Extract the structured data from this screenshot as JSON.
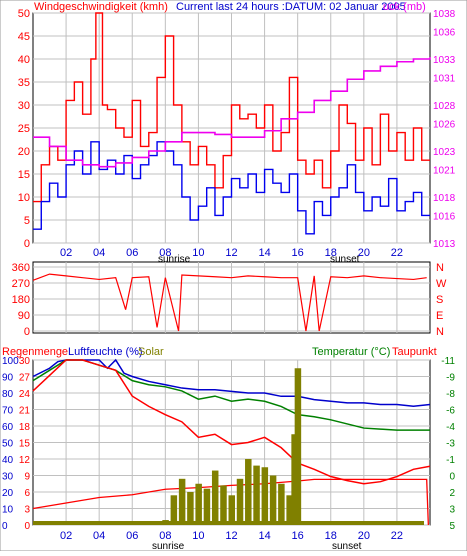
{
  "header": {
    "wind_title": "Windgeschwindigkeit (kmh)",
    "subtitle": "Current last 24 hours :DATUM: 02 Januar 2005",
    "pressure_title": "uck (mb)"
  },
  "bottom_header": {
    "rain": "Regenmenge",
    "humidity": "Luftfeuchte (%)",
    "solar": "Solar",
    "temperature": "Temperatur (°C)",
    "dewpoint": "Taupunkt"
  },
  "hours": [
    "02",
    "04",
    "06",
    "08",
    "10",
    "12",
    "14",
    "16",
    "18",
    "20",
    "22"
  ],
  "sunrise_label": "sunrise",
  "sunset_label": "sunset",
  "colors": {
    "wind_gust": "#ff0000",
    "wind_avg": "#0000ee",
    "pressure": "#ee00ee",
    "direction": "#ff0000",
    "humidity": "#0000cc",
    "temperature": "#008000",
    "dewpoint": "#ff0000",
    "rain": "#ff0000",
    "solar": "#808000",
    "axis_blue": "#0000cc",
    "axis_green": "#008000",
    "axis_red": "#ff0000"
  },
  "chart_data": [
    {
      "type": "line",
      "x_range_hours": [
        0,
        24
      ],
      "ylim": [
        0,
        50
      ],
      "yticks": [
        0,
        5,
        10,
        15,
        20,
        25,
        30,
        35,
        40,
        45,
        50
      ],
      "y2lim": [
        1013,
        1038
      ],
      "y2ticks": [
        1013,
        1016,
        1018,
        1021,
        1023,
        1026,
        1028,
        1031,
        1033,
        1036,
        1038
      ],
      "series": [
        {
          "key": "wind_gust",
          "x": [
            0,
            0.5,
            1,
            1.5,
            2,
            2.5,
            3,
            3.5,
            3.8,
            4.2,
            4.5,
            5,
            5.5,
            6,
            6.5,
            7,
            7.5,
            8,
            8.5,
            9,
            9.5,
            10,
            10.5,
            11,
            11.5,
            12,
            12.5,
            13,
            13.5,
            14,
            14.5,
            15,
            15.5,
            16,
            16.5,
            17,
            17.5,
            18,
            18.5,
            19,
            19.5,
            20,
            20.5,
            21,
            21.5,
            22,
            22.5,
            23,
            23.5
          ],
          "y": [
            9,
            17,
            21,
            18,
            31,
            35,
            28,
            40,
            50,
            30,
            29,
            25,
            23,
            31,
            21,
            24,
            36,
            45,
            30,
            22,
            17,
            21,
            17,
            12,
            19,
            30,
            27,
            28,
            25,
            30,
            20,
            24,
            36,
            18,
            15,
            18,
            12,
            20,
            30,
            26,
            18,
            25,
            17,
            28,
            20,
            24,
            18,
            25,
            18
          ]
        },
        {
          "key": "wind_avg",
          "x": [
            0,
            0.5,
            1,
            1.5,
            2,
            2.5,
            3,
            3.5,
            4,
            4.5,
            5,
            5.5,
            6,
            6.5,
            7,
            7.5,
            8,
            8.5,
            9,
            9.5,
            10,
            10.5,
            11,
            11.5,
            12,
            12.5,
            13,
            13.5,
            14,
            14.5,
            15,
            15.5,
            16,
            16.5,
            17,
            17.5,
            18,
            18.5,
            19,
            19.5,
            20,
            20.5,
            21,
            21.5,
            22,
            22.5,
            23,
            23.5
          ],
          "y": [
            3,
            9,
            13,
            10,
            17,
            20,
            15,
            22,
            16,
            18,
            15,
            19,
            14,
            17,
            19,
            22,
            20,
            17,
            10,
            5,
            8,
            12,
            6,
            10,
            14,
            12,
            15,
            11,
            16,
            13,
            11,
            15,
            7,
            2,
            9,
            6,
            10,
            12,
            17,
            11,
            7,
            10,
            8,
            14,
            7,
            9,
            11,
            6
          ]
        },
        {
          "key": "pressure",
          "x": [
            0,
            1,
            2,
            3,
            4,
            5,
            6,
            7,
            8,
            9,
            10,
            11,
            12,
            13,
            14,
            15,
            16,
            17,
            18,
            19,
            20,
            21,
            22,
            23,
            24
          ],
          "y": [
            1024.5,
            1023.5,
            1022,
            1021.5,
            1021.3,
            1021.7,
            1022.3,
            1023,
            1024,
            1025,
            1025,
            1024.8,
            1024.5,
            1024.5,
            1025.2,
            1026.5,
            1027.2,
            1028.5,
            1029.5,
            1030.8,
            1031.7,
            1032.2,
            1032.7,
            1033.0,
            1033.2
          ]
        }
      ]
    },
    {
      "type": "scatter",
      "ylim": [
        0,
        360
      ],
      "yticks": [
        0,
        90,
        180,
        270,
        360
      ],
      "direction_labels": [
        "N",
        "E",
        "S",
        "W",
        "N"
      ],
      "series": [
        {
          "key": "direction",
          "x": [
            0,
            1,
            2,
            3,
            4,
            5,
            5.6,
            6,
            7,
            7.5,
            8,
            8.8,
            9,
            10,
            11,
            12,
            13,
            14,
            15,
            16,
            16.5,
            17,
            17.3,
            18,
            19,
            20,
            21,
            22,
            23,
            23.8
          ],
          "y": [
            285,
            320,
            310,
            300,
            290,
            300,
            120,
            300,
            305,
            20,
            300,
            0,
            315,
            310,
            305,
            300,
            310,
            305,
            300,
            300,
            0,
            310,
            0,
            305,
            300,
            310,
            300,
            295,
            290,
            300
          ]
        }
      ]
    },
    {
      "type": "line",
      "ylim_humidity": [
        0,
        100
      ],
      "yticks_humidity": [
        0,
        10,
        20,
        30,
        40,
        50,
        60,
        70,
        80,
        90,
        100
      ],
      "yticks_rain": [
        0,
        3,
        6,
        9,
        12,
        15,
        18,
        21,
        24,
        27,
        30
      ],
      "ylim_temp": [
        -11,
        5
      ],
      "yticks_temp": [
        5,
        3,
        2,
        0,
        -1,
        -3,
        -4,
        -6,
        -8,
        -9,
        -11
      ],
      "series": [
        {
          "key": "humidity",
          "x": [
            0,
            1,
            1.5,
            2,
            3,
            4,
            4.5,
            5,
            5.5,
            6,
            7,
            8,
            9,
            10,
            11,
            12,
            13,
            14,
            15,
            16,
            17,
            18,
            19,
            20,
            21,
            22,
            23,
            24
          ],
          "y": [
            90,
            95,
            99,
            100,
            100,
            100,
            95,
            100,
            92,
            90,
            87,
            85,
            83,
            82,
            82,
            81,
            80,
            80,
            78,
            78,
            76,
            75,
            74,
            74,
            73,
            73,
            72,
            73
          ]
        },
        {
          "key": "temperature",
          "x": [
            0,
            1,
            2,
            3,
            4,
            5,
            6,
            7,
            8,
            9,
            10,
            11,
            12,
            13,
            14,
            15,
            16,
            17,
            18,
            19,
            20,
            21,
            22,
            23,
            24
          ],
          "y": [
            3,
            4,
            5,
            5,
            4.5,
            4,
            3,
            2.6,
            2.4,
            2,
            1.2,
            1.5,
            1,
            1.2,
            1,
            0.5,
            -0.3,
            -0.5,
            -0.8,
            -1.2,
            -1.6,
            -1.7,
            -1.8,
            -1.8,
            -1.8
          ]
        },
        {
          "key": "dewpoint",
          "x": [
            0,
            1,
            2,
            3,
            4,
            5,
            6,
            7,
            8,
            9,
            10,
            11,
            12,
            13,
            14,
            15,
            16,
            17,
            18,
            19,
            20,
            21,
            22,
            23,
            24
          ],
          "y": [
            2,
            3.5,
            5,
            5,
            4.5,
            4,
            1.5,
            0.5,
            -0.3,
            -1,
            -2.5,
            -2.2,
            -3.2,
            -3,
            -2.5,
            -3.5,
            -5,
            -5.6,
            -6.3,
            -6.7,
            -7,
            -6.8,
            -6.3,
            -5.6,
            -5.3
          ]
        },
        {
          "key": "rain",
          "x": [
            0,
            2,
            4,
            6,
            8,
            10,
            12,
            14,
            16,
            17,
            18,
            20,
            22,
            23.8,
            23.9
          ],
          "y": [
            3,
            4,
            5,
            5.5,
            6.5,
            6.8,
            7.2,
            7.5,
            8,
            8.3,
            8.3,
            8.3,
            8.3,
            8.3,
            0
          ]
        },
        {
          "key": "solar",
          "x": [
            8,
            8.5,
            9,
            9.5,
            10,
            10.5,
            11,
            11.5,
            12,
            12.5,
            13,
            13.5,
            14,
            14.5,
            15,
            15.5,
            15.8,
            16
          ],
          "y": [
            3,
            18,
            28,
            20,
            25,
            22,
            33,
            24,
            18,
            28,
            40,
            36,
            35,
            30,
            25,
            18,
            55,
            95
          ]
        }
      ]
    }
  ]
}
